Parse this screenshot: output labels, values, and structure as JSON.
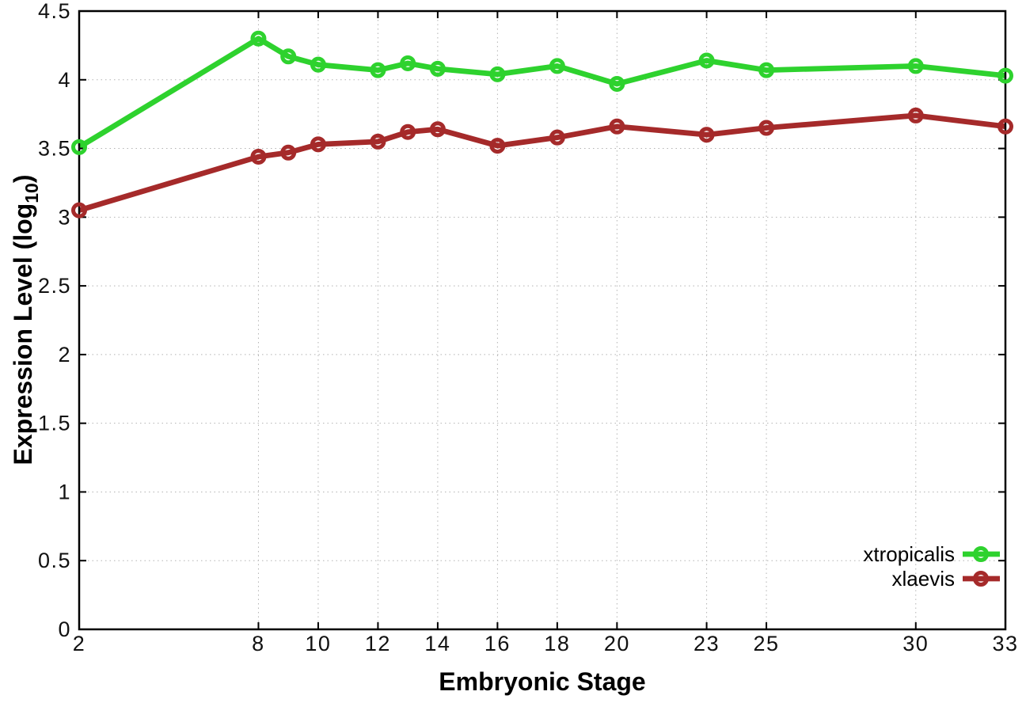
{
  "chart_data": {
    "type": "line",
    "title": "",
    "xlabel": "Embryonic Stage",
    "ylabel": "Expression Level (log10)",
    "ylabel_parts": [
      {
        "t": "Expression Level (log"
      },
      {
        "t": "10",
        "sub": true
      },
      {
        "t": ")"
      }
    ],
    "xlim": [
      2,
      33
    ],
    "ylim": [
      0,
      4.5
    ],
    "grid": true,
    "grid_color": "#b3b3b3",
    "axis_color": "#000000",
    "background_color": "#ffffff",
    "legend_position": "bottom-right-inside",
    "x": [
      2,
      8,
      9,
      10,
      12,
      13,
      14,
      16,
      18,
      20,
      23,
      25,
      30,
      33
    ],
    "x_ticks": [
      2,
      8,
      10,
      12,
      14,
      16,
      18,
      20,
      23,
      25,
      30,
      33
    ],
    "y_ticks": [
      0,
      0.5,
      1,
      1.5,
      2,
      2.5,
      3,
      3.5,
      4,
      4.5
    ],
    "series": [
      {
        "name": "xtropicalis",
        "color": "#2ed22e",
        "marker": "open-circle",
        "values": [
          3.51,
          4.3,
          4.17,
          4.11,
          4.07,
          4.12,
          4.08,
          4.04,
          4.1,
          3.97,
          4.14,
          4.07,
          4.1,
          4.03
        ]
      },
      {
        "name": "xlaevis",
        "color": "#a52a2a",
        "marker": "open-circle",
        "values": [
          3.05,
          3.44,
          3.47,
          3.53,
          3.55,
          3.62,
          3.64,
          3.52,
          3.58,
          3.66,
          3.6,
          3.65,
          3.74,
          3.66
        ]
      }
    ]
  }
}
